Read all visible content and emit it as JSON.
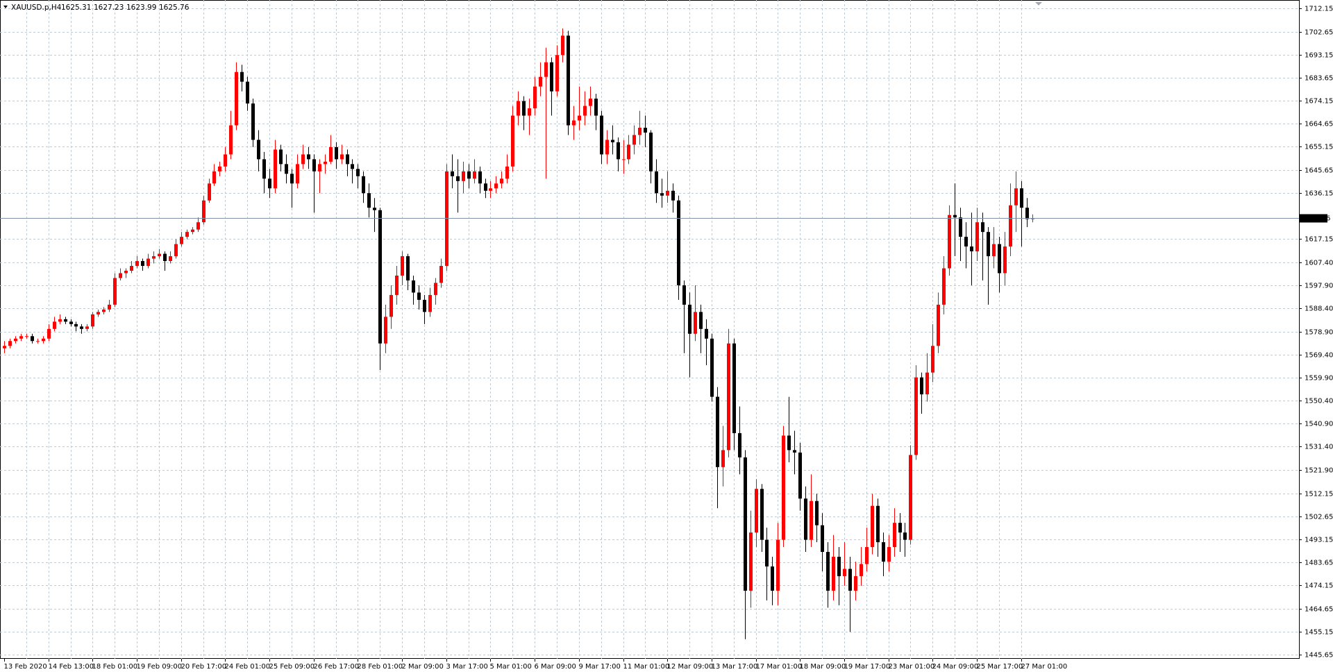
{
  "chart_data": {
    "type": "candlestick",
    "title": "XAUUSD.p,H4",
    "up_color": "#ff0000",
    "down_color": "#000000",
    "grid": true,
    "grid_color": "#c0c8d0",
    "ylim": [
      1443.9,
      1715.7
    ],
    "yticks": [
      1712.15,
      1702.65,
      1693.15,
      1683.65,
      1674.15,
      1664.65,
      1655.15,
      1645.65,
      1636.15,
      1617.15,
      {
        "value": 1607.4,
        "label": "1607.40"
      },
      {
        "value": 1597.9,
        "label": "1597.90"
      },
      {
        "value": 1588.4,
        "label": "1588.40"
      },
      {
        "value": 1578.9,
        "label": "1578.90"
      },
      {
        "value": 1569.4,
        "label": "1569.40"
      },
      {
        "value": 1559.9,
        "label": "1559.90"
      },
      {
        "value": 1550.4,
        "label": "1550.40"
      },
      {
        "value": 1540.9,
        "label": "1540.90"
      },
      {
        "value": 1531.4,
        "label": "1531.40"
      },
      {
        "value": 1521.9,
        "label": "1521.90"
      },
      1512.15,
      1502.65,
      1493.15,
      1483.65,
      1474.15,
      1464.65,
      1455.15,
      1445.65
    ],
    "categories": [
      "13 Feb 2020",
      null,
      null,
      null,
      null,
      null,
      null,
      null,
      "14 Feb 13:00",
      null,
      null,
      null,
      null,
      null,
      null,
      null,
      "18 Feb 01:00",
      null,
      null,
      null,
      null,
      null,
      null,
      null,
      "19 Feb 09:00",
      null,
      null,
      null,
      null,
      null,
      null,
      null,
      "20 Feb 17:00",
      null,
      null,
      null,
      null,
      null,
      null,
      null,
      "24 Feb 01:00",
      null,
      null,
      null,
      null,
      null,
      null,
      null,
      "25 Feb 09:00",
      null,
      null,
      null,
      null,
      null,
      null,
      null,
      "26 Feb 17:00",
      null,
      null,
      null,
      null,
      null,
      null,
      null,
      "28 Feb 01:00",
      null,
      null,
      null,
      null,
      null,
      null,
      null,
      "2 Mar 09:00",
      null,
      null,
      null,
      null,
      null,
      null,
      null,
      "3 Mar 17:00",
      null,
      null,
      null,
      null,
      null,
      null,
      null,
      "5 Mar 01:00",
      null,
      null,
      null,
      null,
      null,
      null,
      null,
      "6 Mar 09:00",
      null,
      null,
      null,
      null,
      null,
      null,
      null,
      "9 Mar 17:00",
      null,
      null,
      null,
      null,
      null,
      null,
      null,
      "11 Mar 01:00",
      null,
      null,
      null,
      null,
      null,
      null,
      null,
      "12 Mar 09:00",
      null,
      null,
      null,
      null,
      null,
      null,
      null,
      "13 Mar 17:00",
      null,
      null,
      null,
      null,
      null,
      null,
      null,
      "17 Mar 01:00",
      null,
      null,
      null,
      null,
      null,
      null,
      null,
      "18 Mar 09:00",
      null,
      null,
      null,
      null,
      null,
      null,
      null,
      "19 Mar 17:00",
      null,
      null,
      null,
      null,
      null,
      null,
      null,
      "23 Mar 01:00",
      null,
      null,
      null,
      null,
      null,
      null,
      null,
      "24 Mar 09:00",
      null,
      null,
      null,
      null,
      null,
      null,
      null,
      "25 Mar 17:00",
      null,
      null,
      null,
      null,
      null,
      null,
      null,
      "27 Mar 01:00",
      null,
      null
    ],
    "candles": [
      [
        1572,
        1575,
        1570,
        1573
      ],
      [
        1573,
        1576,
        1572,
        1575
      ],
      [
        1575,
        1577,
        1574,
        1576
      ],
      [
        1576,
        1578,
        1575,
        1577
      ],
      [
        1577,
        1578,
        1576,
        1577
      ],
      [
        1577,
        1578,
        1574,
        1575
      ],
      [
        1575,
        1576,
        1574,
        1575
      ],
      [
        1575,
        1577,
        1574,
        1576
      ],
      [
        1576,
        1582,
        1575,
        1580
      ],
      [
        1580,
        1585,
        1579,
        1583
      ],
      [
        1583,
        1586,
        1582,
        1584
      ],
      [
        1584,
        1585,
        1582,
        1583
      ],
      [
        1583,
        1584,
        1581,
        1582
      ],
      [
        1582,
        1583,
        1579,
        1581
      ],
      [
        1581,
        1582,
        1578,
        1580
      ],
      [
        1580,
        1582,
        1579,
        1581
      ],
      [
        1581,
        1587,
        1580,
        1586
      ],
      [
        1586,
        1588,
        1585,
        1587
      ],
      [
        1587,
        1589,
        1586,
        1588
      ],
      [
        1588,
        1592,
        1587,
        1590
      ],
      [
        1590,
        1603,
        1589,
        1601
      ],
      [
        1601,
        1605,
        1600,
        1603
      ],
      [
        1603,
        1605,
        1601,
        1604
      ],
      [
        1604,
        1608,
        1603,
        1606
      ],
      [
        1606,
        1610,
        1605,
        1608
      ],
      [
        1608,
        1609,
        1604,
        1606
      ],
      [
        1606,
        1611,
        1605,
        1609
      ],
      [
        1609,
        1612,
        1607,
        1610
      ],
      [
        1610,
        1613,
        1609,
        1611
      ],
      [
        1611,
        1612,
        1604,
        1608
      ],
      [
        1608,
        1612,
        1607,
        1610
      ],
      [
        1610,
        1617,
        1609,
        1615
      ],
      [
        1615,
        1620,
        1614,
        1618
      ],
      [
        1618,
        1621,
        1617,
        1620
      ],
      [
        1620,
        1622,
        1619,
        1621
      ],
      [
        1621,
        1626,
        1620,
        1624
      ],
      [
        1624,
        1635,
        1623,
        1633
      ],
      [
        1633,
        1642,
        1632,
        1640
      ],
      [
        1640,
        1648,
        1639,
        1645
      ],
      [
        1645,
        1649,
        1643,
        1647
      ],
      [
        1647,
        1655,
        1645,
        1652
      ],
      [
        1652,
        1670,
        1650,
        1664
      ],
      [
        1664,
        1690,
        1662,
        1686
      ],
      [
        1686,
        1689,
        1678,
        1682
      ],
      [
        1682,
        1684,
        1670,
        1673
      ],
      [
        1673,
        1675,
        1655,
        1658
      ],
      [
        1658,
        1662,
        1645,
        1650
      ],
      [
        1650,
        1653,
        1636,
        1642
      ],
      [
        1642,
        1646,
        1634,
        1638
      ],
      [
        1638,
        1658,
        1636,
        1654
      ],
      [
        1654,
        1656,
        1645,
        1648
      ],
      [
        1648,
        1652,
        1640,
        1644
      ],
      [
        1644,
        1646,
        1630,
        1640
      ],
      [
        1640,
        1652,
        1638,
        1648
      ],
      [
        1648,
        1656,
        1646,
        1652
      ],
      [
        1652,
        1655,
        1646,
        1650
      ],
      [
        1650,
        1652,
        1628,
        1645
      ],
      [
        1645,
        1650,
        1636,
        1648
      ],
      [
        1648,
        1652,
        1644,
        1649
      ],
      [
        1649,
        1660,
        1648,
        1655
      ],
      [
        1655,
        1657,
        1646,
        1650
      ],
      [
        1650,
        1656,
        1648,
        1652
      ],
      [
        1652,
        1654,
        1643,
        1648
      ],
      [
        1648,
        1650,
        1640,
        1646
      ],
      [
        1646,
        1648,
        1638,
        1643
      ],
      [
        1643,
        1645,
        1632,
        1636
      ],
      [
        1636,
        1640,
        1626,
        1630
      ],
      [
        1630,
        1634,
        1620,
        1629
      ],
      [
        1629,
        1630,
        1563,
        1574
      ],
      [
        1574,
        1590,
        1570,
        1585
      ],
      [
        1585,
        1598,
        1580,
        1594
      ],
      [
        1594,
        1606,
        1590,
        1602
      ],
      [
        1602,
        1612,
        1598,
        1610
      ],
      [
        1610,
        1611,
        1596,
        1600
      ],
      [
        1600,
        1602,
        1590,
        1595
      ],
      [
        1595,
        1598,
        1588,
        1592
      ],
      [
        1592,
        1594,
        1582,
        1587
      ],
      [
        1587,
        1597,
        1585,
        1594
      ],
      [
        1594,
        1601,
        1590,
        1599
      ],
      [
        1599,
        1609,
        1597,
        1606
      ],
      [
        1606,
        1648,
        1604,
        1645
      ],
      [
        1645,
        1652,
        1638,
        1643
      ],
      [
        1643,
        1650,
        1628,
        1641
      ],
      [
        1641,
        1649,
        1636,
        1645
      ],
      [
        1645,
        1648,
        1638,
        1642
      ],
      [
        1642,
        1650,
        1640,
        1645
      ],
      [
        1645,
        1647,
        1636,
        1640
      ],
      [
        1640,
        1642,
        1634,
        1637
      ],
      [
        1637,
        1641,
        1634,
        1638
      ],
      [
        1638,
        1643,
        1636,
        1640
      ],
      [
        1640,
        1645,
        1638,
        1642
      ],
      [
        1642,
        1652,
        1640,
        1647
      ],
      [
        1647,
        1672,
        1645,
        1668
      ],
      [
        1668,
        1678,
        1664,
        1674
      ],
      [
        1674,
        1676,
        1662,
        1668
      ],
      [
        1668,
        1675,
        1660,
        1671
      ],
      [
        1671,
        1684,
        1668,
        1680
      ],
      [
        1680,
        1690,
        1676,
        1684
      ],
      [
        1684,
        1696,
        1642,
        1690
      ],
      [
        1690,
        1692,
        1668,
        1678
      ],
      [
        1678,
        1697,
        1676,
        1693
      ],
      [
        1693,
        1704,
        1690,
        1701
      ],
      [
        1701,
        1703,
        1660,
        1664
      ],
      [
        1664,
        1672,
        1658,
        1666
      ],
      [
        1666,
        1680,
        1662,
        1668
      ],
      [
        1668,
        1678,
        1664,
        1672
      ],
      [
        1672,
        1680,
        1668,
        1675
      ],
      [
        1675,
        1677,
        1662,
        1668
      ],
      [
        1668,
        1670,
        1648,
        1652
      ],
      [
        1652,
        1662,
        1648,
        1658
      ],
      [
        1658,
        1664,
        1652,
        1657
      ],
      [
        1657,
        1659,
        1645,
        1650
      ],
      [
        1650,
        1658,
        1644,
        1650
      ],
      [
        1650,
        1660,
        1648,
        1656
      ],
      [
        1656,
        1664,
        1652,
        1660
      ],
      [
        1660,
        1670,
        1656,
        1663
      ],
      [
        1663,
        1668,
        1655,
        1661
      ],
      [
        1661,
        1662,
        1640,
        1645
      ],
      [
        1645,
        1650,
        1632,
        1636
      ],
      [
        1636,
        1642,
        1630,
        1635
      ],
      [
        1635,
        1645,
        1632,
        1637
      ],
      [
        1637,
        1640,
        1628,
        1633
      ],
      [
        1633,
        1635,
        1592,
        1598
      ],
      [
        1598,
        1600,
        1570,
        1590
      ],
      [
        1590,
        1595,
        1560,
        1578
      ],
      [
        1578,
        1598,
        1575,
        1587
      ],
      [
        1587,
        1590,
        1570,
        1580
      ],
      [
        1580,
        1584,
        1565,
        1576
      ],
      [
        1576,
        1578,
        1550,
        1552
      ],
      [
        1552,
        1556,
        1506,
        1523
      ],
      [
        1523,
        1540,
        1515,
        1530
      ],
      [
        1530,
        1580,
        1527,
        1574
      ],
      [
        1574,
        1576,
        1530,
        1537
      ],
      [
        1537,
        1548,
        1520,
        1527
      ],
      [
        1527,
        1530,
        1452,
        1472
      ],
      [
        1472,
        1505,
        1465,
        1496
      ],
      [
        1496,
        1518,
        1490,
        1514
      ],
      [
        1514,
        1516,
        1488,
        1493
      ],
      [
        1493,
        1498,
        1468,
        1482
      ],
      [
        1482,
        1486,
        1466,
        1472
      ],
      [
        1472,
        1500,
        1466,
        1493
      ],
      [
        1493,
        1540,
        1490,
        1536
      ],
      [
        1536,
        1552,
        1525,
        1530
      ],
      [
        1530,
        1538,
        1520,
        1529
      ],
      [
        1529,
        1533,
        1505,
        1510
      ],
      [
        1510,
        1515,
        1488,
        1493
      ],
      [
        1493,
        1520,
        1490,
        1509
      ],
      [
        1509,
        1512,
        1492,
        1499
      ],
      [
        1499,
        1504,
        1480,
        1488
      ],
      [
        1488,
        1492,
        1465,
        1472
      ],
      [
        1472,
        1495,
        1468,
        1486
      ],
      [
        1486,
        1490,
        1466,
        1478
      ],
      [
        1478,
        1492,
        1474,
        1481
      ],
      [
        1481,
        1486,
        1455,
        1472
      ],
      [
        1472,
        1484,
        1468,
        1478
      ],
      [
        1478,
        1490,
        1474,
        1483
      ],
      [
        1483,
        1498,
        1480,
        1490
      ],
      [
        1490,
        1512,
        1487,
        1507
      ],
      [
        1507,
        1510,
        1486,
        1492
      ],
      [
        1492,
        1496,
        1478,
        1484
      ],
      [
        1484,
        1495,
        1480,
        1490
      ],
      [
        1490,
        1506,
        1486,
        1500
      ],
      [
        1500,
        1504,
        1488,
        1496
      ],
      [
        1496,
        1500,
        1486,
        1493
      ],
      [
        1493,
        1532,
        1491,
        1528
      ],
      [
        1528,
        1565,
        1526,
        1560
      ],
      [
        1560,
        1562,
        1545,
        1553
      ],
      [
        1553,
        1570,
        1550,
        1562
      ],
      [
        1562,
        1582,
        1558,
        1573
      ],
      [
        1573,
        1595,
        1570,
        1590
      ],
      [
        1590,
        1610,
        1586,
        1605
      ],
      [
        1605,
        1631,
        1602,
        1627
      ],
      [
        1627,
        1640,
        1610,
        1626
      ],
      [
        1626,
        1630,
        1608,
        1618
      ],
      [
        1618,
        1624,
        1605,
        1614
      ],
      [
        1614,
        1628,
        1598,
        1612
      ],
      [
        1612,
        1630,
        1608,
        1624
      ],
      [
        1624,
        1628,
        1600,
        1620
      ],
      [
        1620,
        1622,
        1590,
        1610
      ],
      [
        1610,
        1622,
        1605,
        1615
      ],
      [
        1615,
        1618,
        1595,
        1603
      ],
      [
        1603,
        1620,
        1598,
        1614
      ],
      [
        1614,
        1640,
        1610,
        1631
      ],
      [
        1631,
        1645,
        1620,
        1638
      ],
      [
        1638,
        1641,
        1614,
        1630
      ],
      [
        1630,
        1634,
        1622,
        1625.31
      ],
      [
        1625.31,
        1627.23,
        1623.99,
        1625.76
      ]
    ]
  }
}
